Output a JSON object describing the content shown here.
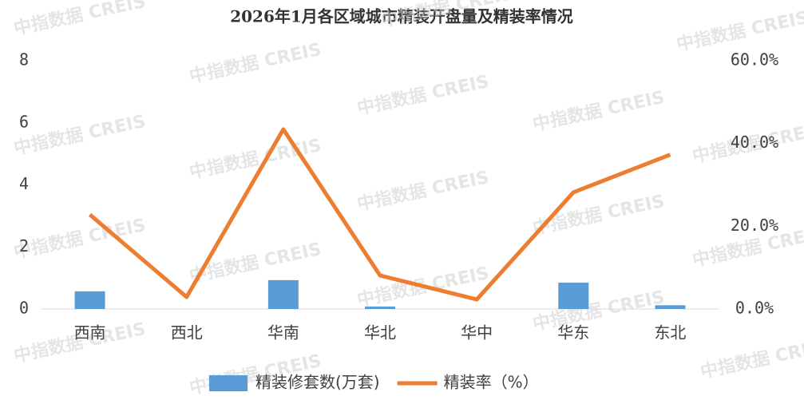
{
  "chart_data": {
    "type": "combo",
    "title": "2026年1月各区域城市精装开盘量及精装率情况",
    "watermark": "中指数据 CREIS",
    "categories": [
      "西南",
      "西北",
      "华南",
      "华北",
      "华中",
      "华东",
      "东北"
    ],
    "series": [
      {
        "name": "精装修套数(万套)",
        "type": "bar",
        "color": "#5b9bd5",
        "values": [
          0.57,
          0,
          0.93,
          0.08,
          0,
          0.85,
          0.12
        ]
      },
      {
        "name": "精装率（%）",
        "type": "line",
        "axis": "y2",
        "color": "#ed7d31",
        "values": [
          22.8,
          2.9,
          43.4,
          8.1,
          2.3,
          28.2,
          37.3
        ]
      }
    ],
    "ylim": [
      0,
      8
    ],
    "yticks": [
      0,
      2,
      4,
      6,
      8
    ],
    "y2lim": [
      0,
      60
    ],
    "y2ticks": [
      {
        "value": 0,
        "label": "0.0%"
      },
      {
        "value": 20,
        "label": "20.0%"
      },
      {
        "value": 40,
        "label": "40.0%"
      },
      {
        "value": 60,
        "label": "60.0%"
      }
    ],
    "legend": "bottom"
  }
}
